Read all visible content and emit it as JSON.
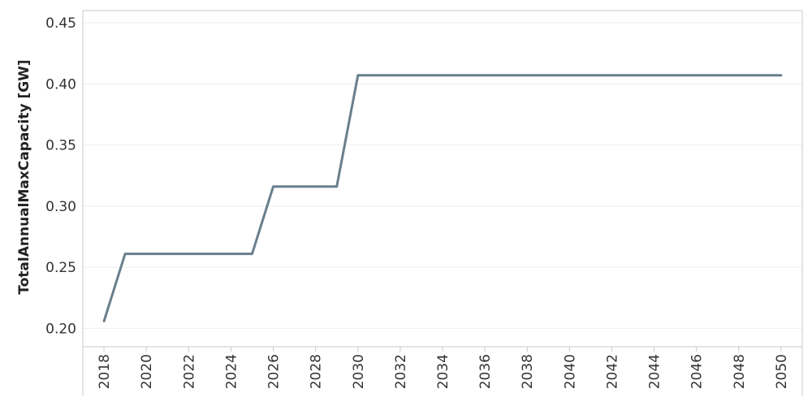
{
  "chart_data": {
    "type": "line",
    "title": "",
    "xlabel": "",
    "ylabel": "TotalAnnualMaxCapacity [GW]",
    "x": [
      2018,
      2019,
      2020,
      2021,
      2022,
      2023,
      2024,
      2025,
      2026,
      2027,
      2028,
      2029,
      2030,
      2031,
      2032,
      2033,
      2034,
      2035,
      2036,
      2037,
      2038,
      2039,
      2040,
      2041,
      2042,
      2043,
      2044,
      2045,
      2046,
      2047,
      2048,
      2049,
      2050
    ],
    "series": [
      {
        "values": [
          0.206,
          0.261,
          0.261,
          0.261,
          0.261,
          0.261,
          0.261,
          0.261,
          0.316,
          0.316,
          0.316,
          0.316,
          0.407,
          0.407,
          0.407,
          0.407,
          0.407,
          0.407,
          0.407,
          0.407,
          0.407,
          0.407,
          0.407,
          0.407,
          0.407,
          0.407,
          0.407,
          0.407,
          0.407,
          0.407,
          0.407,
          0.407,
          0.407
        ]
      }
    ],
    "xticks": [
      "2018",
      "2020",
      "2022",
      "2024",
      "2026",
      "2028",
      "2030",
      "2032",
      "2034",
      "2036",
      "2038",
      "2040",
      "2042",
      "2044",
      "2046",
      "2048",
      "2050"
    ],
    "yticks": [
      "0.20",
      "0.25",
      "0.30",
      "0.35",
      "0.40",
      "0.45"
    ],
    "xlim": [
      2017,
      2051
    ],
    "ylim": [
      0.185,
      0.46
    ],
    "grid": true,
    "legend": "none",
    "line_color": "#687f8c",
    "grid_color": "#eeeeee",
    "axis_color": "#c8c8c8"
  }
}
